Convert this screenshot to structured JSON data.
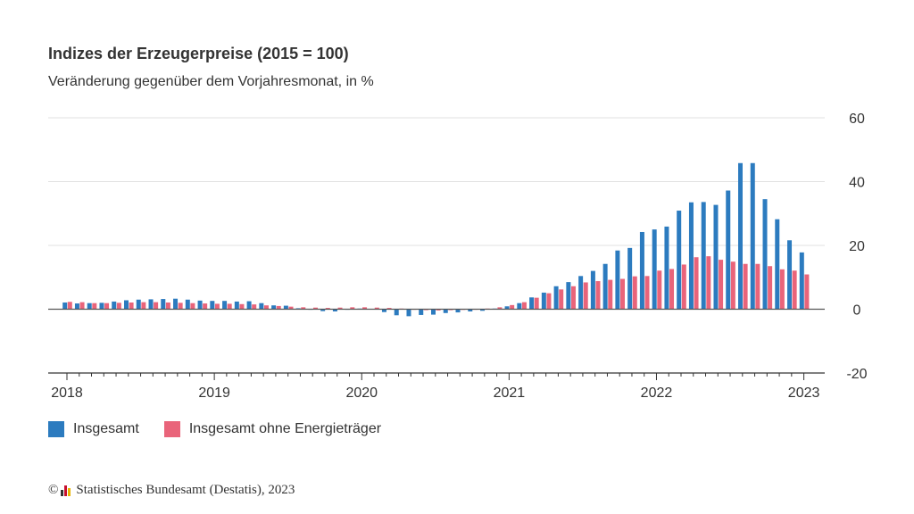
{
  "chart_data": {
    "type": "bar",
    "title": "Indizes der Erzeugerpreise (2015 = 100)",
    "subtitle": "Veränderung gegenüber dem Vorjahresmonat, in %",
    "x_start": "2018-01",
    "x_end": "2023-01",
    "x_ticks": [
      "2018",
      "2019",
      "2020",
      "2021",
      "2022",
      "2023"
    ],
    "y_ticks": [
      "-20",
      "0",
      "20",
      "40",
      "60"
    ],
    "ylim": [
      -20,
      60
    ],
    "grid": true,
    "legend_position": "bottom-left",
    "series": [
      {
        "name": "Insgesamt",
        "color": "#2c7bbf",
        "values": [
          2.1,
          1.8,
          1.9,
          2.0,
          2.4,
          2.8,
          3.0,
          3.1,
          3.2,
          3.3,
          3.0,
          2.7,
          2.6,
          2.6,
          2.4,
          2.5,
          1.9,
          1.2,
          1.1,
          0.3,
          -0.1,
          -0.6,
          -0.7,
          0.0,
          0.2,
          0.1,
          -0.9,
          -1.9,
          -2.2,
          -1.8,
          -1.7,
          -1.2,
          -1.0,
          -0.7,
          -0.5,
          0.2,
          0.9,
          1.9,
          3.7,
          5.2,
          7.2,
          8.5,
          10.4,
          12.0,
          14.2,
          18.4,
          19.2,
          24.2,
          25.0,
          25.9,
          30.9,
          33.5,
          33.6,
          32.7,
          37.2,
          45.8,
          45.8,
          34.5,
          28.2,
          21.6,
          17.8
        ]
      },
      {
        "name": "Insgesamt ohne Energieträger",
        "color": "#e9647a",
        "values": [
          2.3,
          2.2,
          1.9,
          1.9,
          2.0,
          2.1,
          2.2,
          2.2,
          2.1,
          2.0,
          1.9,
          1.8,
          1.7,
          1.7,
          1.6,
          1.5,
          1.2,
          1.0,
          0.8,
          0.6,
          0.5,
          0.4,
          0.5,
          0.6,
          0.6,
          0.5,
          0.4,
          0.2,
          -0.1,
          -0.3,
          -0.4,
          -0.3,
          -0.2,
          -0.1,
          0.2,
          0.6,
          1.3,
          2.2,
          3.6,
          5.0,
          6.2,
          7.2,
          8.4,
          8.8,
          9.2,
          9.5,
          10.3,
          10.4,
          12.1,
          12.6,
          14.0,
          16.3,
          16.6,
          15.5,
          14.9,
          14.2,
          14.2,
          13.5,
          12.5,
          12.1,
          10.9
        ]
      }
    ]
  },
  "legend": [
    {
      "label": "Insgesamt",
      "color": "#2c7bbf"
    },
    {
      "label": "Insgesamt ohne Energieträger",
      "color": "#e9647a"
    }
  ],
  "footer": {
    "copyright": "©",
    "source": "Statistisches Bundesamt (Destatis), 2023"
  }
}
